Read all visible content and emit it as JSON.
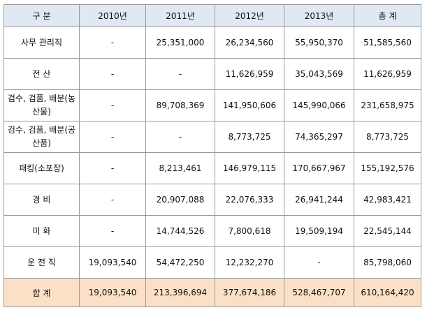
{
  "table": {
    "headers": [
      "구 분",
      "2010년",
      "2011년",
      "2012년",
      "2013년",
      "총 계"
    ],
    "rows": [
      {
        "category": "사무 관리직",
        "values": [
          "-",
          "25,351,000",
          "26,234,560",
          "55,950,370",
          "51,585,560"
        ]
      },
      {
        "category": "전 산",
        "values": [
          "-",
          "-",
          "11,626,959",
          "35,043,569",
          "11,626,959"
        ]
      },
      {
        "category": "검수, 검품, 배분(농산물)",
        "values": [
          "-",
          "89,708,369",
          "141,950,606",
          "145,990,066",
          "231,658,975"
        ]
      },
      {
        "category": "검수, 검품, 배분(공산품)",
        "values": [
          "-",
          "-",
          "8,773,725",
          "74,365,297",
          "8,773,725"
        ]
      },
      {
        "category": "패킹(소포장)",
        "values": [
          "-",
          "8,213,461",
          "146,979,115",
          "170,667,967",
          "155,192,576"
        ]
      },
      {
        "category": "경 비",
        "values": [
          "-",
          "20,907,088",
          "22,076,333",
          "26,941,244",
          "42,983,421"
        ]
      },
      {
        "category": "미 화",
        "values": [
          "-",
          "14,744,526",
          "7,800,618",
          "19,509,194",
          "22,545,144"
        ]
      },
      {
        "category": "운 전 직",
        "values": [
          "19,093,540",
          "54,472,250",
          "12,232,270",
          "-",
          "85,798,060"
        ]
      }
    ],
    "total": {
      "category": "합 계",
      "values": [
        "19,093,540",
        "213,396,694",
        "377,674,186",
        "528,467,707",
        "610,164,420"
      ]
    }
  },
  "colors": {
    "header_bg": "#dfe8f3",
    "total_bg": "#fbe0c8",
    "border": "#9a9a9a"
  }
}
